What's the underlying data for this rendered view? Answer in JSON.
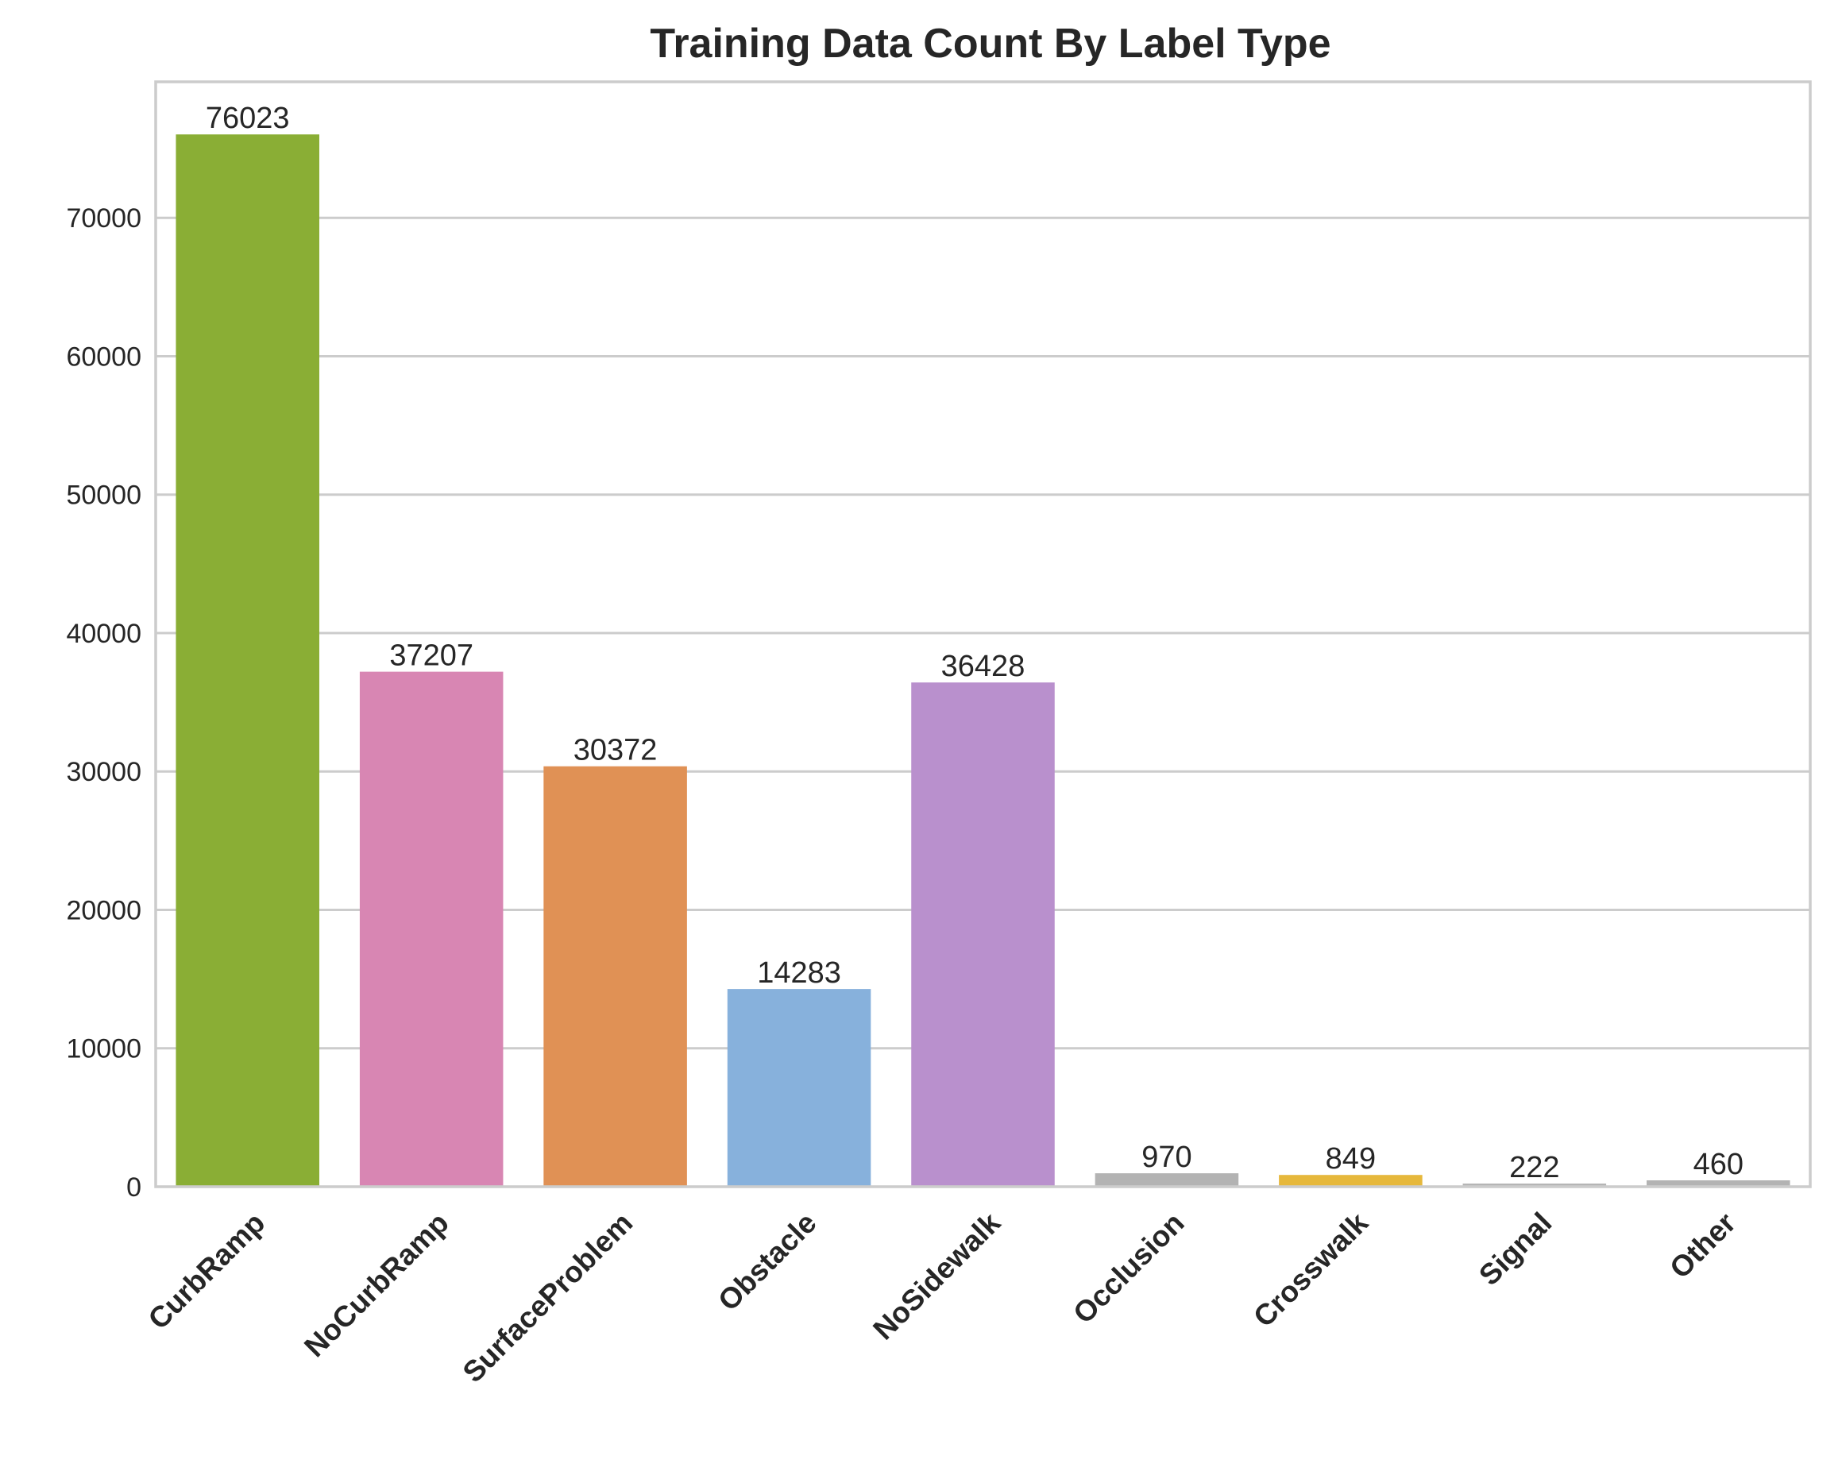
{
  "chart_data": {
    "type": "bar",
    "title": "Training Data Count By Label Type",
    "xlabel": "",
    "ylabel": "",
    "categories": [
      "CurbRamp",
      "NoCurbRamp",
      "SurfaceProblem",
      "Obstacle",
      "NoSidewalk",
      "Occlusion",
      "Crosswalk",
      "Signal",
      "Other"
    ],
    "values": [
      76023,
      37207,
      30372,
      14283,
      36428,
      970,
      849,
      222,
      460
    ],
    "value_labels": [
      "76023",
      "37207",
      "30372",
      "14283",
      "36428",
      "970",
      "849",
      "222",
      "460"
    ],
    "colors": [
      "#8AAE35",
      "#D886B3",
      "#E09155",
      "#87B1DC",
      "#B990CD",
      "#B3B3B3",
      "#E6B83C",
      "#B3B3B3",
      "#B3B3B3"
    ],
    "ylim": [
      0,
      79824
    ],
    "yticks": [
      0,
      10000,
      20000,
      30000,
      40000,
      50000,
      60000,
      70000
    ],
    "ytick_labels": [
      "0",
      "10000",
      "20000",
      "30000",
      "40000",
      "50000",
      "60000",
      "70000"
    ],
    "grid": true,
    "legend": "none"
  }
}
